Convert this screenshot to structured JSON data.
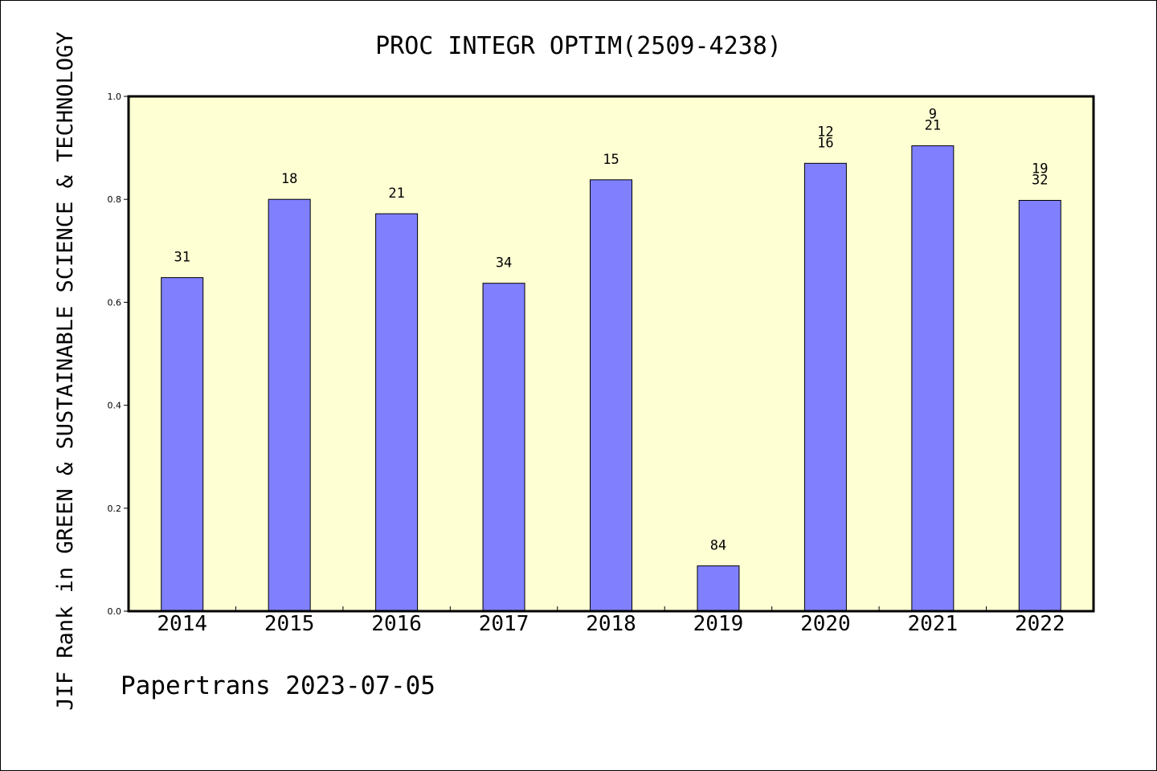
{
  "chart_data": {
    "type": "bar",
    "title": "PROC INTEGR OPTIM(2509-4238)",
    "ylabel": "JIF Rank in GREEN & SUSTAINABLE SCIENCE & TECHNOLOGY",
    "xlabel": "",
    "categories": [
      "2014",
      "2015",
      "2016",
      "2017",
      "2018",
      "2019",
      "2020",
      "2021",
      "2022"
    ],
    "values": [
      0.648,
      0.8,
      0.772,
      0.637,
      0.838,
      0.088,
      0.87,
      0.904,
      0.798
    ],
    "bar_labels": [
      [
        "31"
      ],
      [
        "18"
      ],
      [
        "21"
      ],
      [
        "34"
      ],
      [
        "15"
      ],
      [
        "84"
      ],
      [
        "12",
        "16"
      ],
      [
        "9",
        "21"
      ],
      [
        "19",
        "32"
      ]
    ],
    "ylim": [
      0,
      1.0
    ],
    "yticks": [
      "0.0",
      "0.2",
      "0.4",
      "0.6",
      "0.8",
      "1.0"
    ],
    "grid": false,
    "colors": {
      "bar": "#8080ff",
      "plot_bg": "#ffffd4",
      "axis": "#000000"
    },
    "footer": "Papertrans 2023-07-05"
  }
}
